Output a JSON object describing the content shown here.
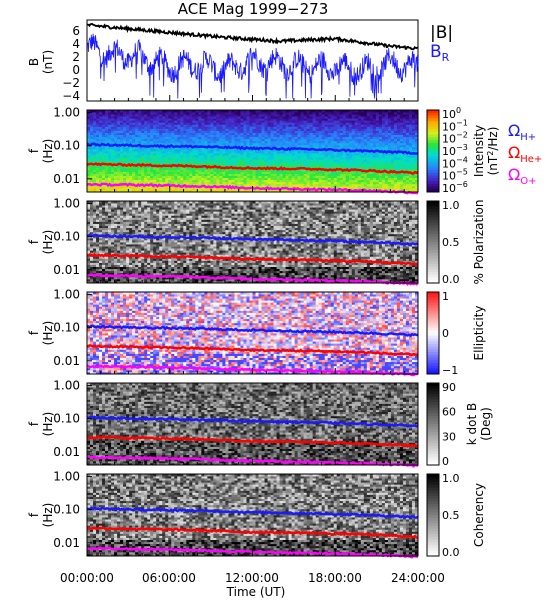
{
  "title": "ACE Mag 1999−273",
  "x_axis": {
    "label": "Time (UT)",
    "ticks": [
      "00:00:00",
      "06:00:00",
      "12:00:00",
      "18:00:00",
      "24:00:00"
    ],
    "range_hours": [
      0,
      24
    ]
  },
  "colors": {
    "B_total": "#000000",
    "B_R": "#1a1aff",
    "H_plus": "#1a1aff",
    "He_plus": "#ff0000",
    "O_plus": "#ff00ff"
  },
  "panel1": {
    "ylabel": "B",
    "yunit": "(nT)",
    "ticks": [
      "6",
      "4",
      "2",
      "0",
      "−2",
      "−4"
    ],
    "legend": {
      "total": "|B|",
      "radial_base": "B",
      "radial_sub": "R"
    }
  },
  "legend_omega": {
    "symbol": "Ω",
    "h": "H+",
    "he": "He+",
    "o": "O+"
  },
  "panels": [
    {
      "id": "intensity",
      "ylabel": "f",
      "yunit": "(Hz)",
      "yticks": [
        "1.00",
        "0.10",
        "0.01"
      ],
      "cbar_title": "Intensity",
      "cbar_unit_prefix": "(nT",
      "cbar_unit_sup": "2",
      "cbar_unit_suffix": "/Hz)",
      "cbar_ticks": [
        "10",
        "10",
        "10",
        "10",
        "10",
        "10",
        "10"
      ],
      "cbar_exps": [
        "0",
        "−1",
        "−2",
        "−3",
        "−4",
        "−5",
        "−6"
      ]
    },
    {
      "id": "polarization",
      "ylabel": "f",
      "yunit": "(Hz)",
      "yticks": [
        "1.00",
        "0.10",
        "0.01"
      ],
      "cbar_title": "% Polarization",
      "cbar_ticks": [
        "1.0",
        "0.5",
        "0.0"
      ]
    },
    {
      "id": "ellipticity",
      "ylabel": "f",
      "yunit": "(Hz)",
      "yticks": [
        "1.00",
        "0.10",
        "0.01"
      ],
      "cbar_title": "Ellipticity",
      "cbar_ticks": [
        "1",
        "0",
        "−1"
      ]
    },
    {
      "id": "kdotb",
      "ylabel": "f",
      "yunit": "(Hz)",
      "yticks": [
        "1.00",
        "0.10",
        "0.01"
      ],
      "cbar_title": "k dot B",
      "cbar_title2": "(Deg)",
      "cbar_ticks": [
        "90",
        "60",
        "30",
        "0"
      ]
    },
    {
      "id": "coherency",
      "ylabel": "f",
      "yunit": "(Hz)",
      "yticks": [
        "1.00",
        "0.10",
        "0.01"
      ],
      "cbar_title": "Coherency",
      "cbar_ticks": [
        "1.0",
        "0.5",
        "0.0"
      ]
    }
  ],
  "chart_data": {
    "type": "line",
    "title": "ACE Mag 1999−273",
    "xlabel": "Time (UT)",
    "xlim_hours": [
      0,
      24
    ],
    "panel1": {
      "ylim": [
        -5,
        8
      ],
      "series": [
        {
          "name": "|B|",
          "x": [
            0,
            2,
            4,
            6,
            8,
            10,
            12,
            14,
            16,
            18,
            20,
            22,
            24
          ],
          "values": [
            7.2,
            6.8,
            6.4,
            6.0,
            5.6,
            5.2,
            4.9,
            4.6,
            4.8,
            5.0,
            4.4,
            3.8,
            3.4
          ]
        },
        {
          "name": "B_R",
          "x": [
            0,
            2,
            4,
            6,
            8,
            10,
            12,
            14,
            16,
            18,
            20,
            22,
            24
          ],
          "values": [
            3.5,
            2.5,
            2.0,
            0.5,
            1.0,
            0.0,
            1.5,
            1.0,
            0.5,
            0.5,
            0.0,
            1.0,
            0.5
          ]
        }
      ]
    },
    "ion_gyrofrequencies_hz": {
      "x": [
        0,
        4,
        8,
        12,
        16,
        20,
        24
      ],
      "H+": [
        0.11,
        0.1,
        0.094,
        0.084,
        0.078,
        0.07,
        0.06
      ],
      "He+": [
        0.028,
        0.026,
        0.024,
        0.021,
        0.02,
        0.018,
        0.015
      ],
      "O+": [
        0.0068,
        0.0065,
        0.006,
        0.0053,
        0.0049,
        0.0045,
        0.0038
      ]
    },
    "frequency_range_hz": [
      0.004,
      1.2
    ]
  }
}
